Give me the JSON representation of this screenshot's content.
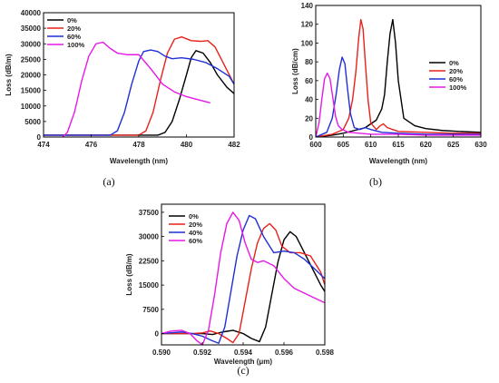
{
  "chart_data": [
    {
      "type": "line",
      "caption": "(a)",
      "xlabel": "Wavelength (nm)",
      "ylabel": "Loss (dB/m)",
      "xlim": [
        474,
        482
      ],
      "ylim": [
        0,
        40000
      ],
      "xticks": [
        474,
        476,
        478,
        480,
        482
      ],
      "yticks": [
        0,
        5000,
        10000,
        15000,
        20000,
        25000,
        30000,
        35000,
        40000
      ],
      "legend_position": "top-left",
      "series": [
        {
          "name": "0%",
          "color": "#000000",
          "x": [
            474,
            478.8,
            479.1,
            479.4,
            479.7,
            480.0,
            480.2,
            480.4,
            480.7,
            481.0,
            481.3,
            481.7,
            482
          ],
          "y": [
            600,
            600,
            1500,
            5000,
            12000,
            20000,
            25500,
            27800,
            27000,
            24000,
            20000,
            16000,
            14000
          ]
        },
        {
          "name": "20%",
          "color": "#e8211a",
          "x": [
            474,
            478.0,
            478.3,
            478.6,
            478.9,
            479.2,
            479.5,
            479.8,
            480.2,
            480.6,
            480.9,
            481.2,
            481.6,
            482
          ],
          "y": [
            600,
            600,
            2000,
            8000,
            18000,
            27000,
            31500,
            32200,
            31000,
            30800,
            31000,
            29000,
            23000,
            17000
          ]
        },
        {
          "name": "60%",
          "color": "#1f2fd6",
          "x": [
            474,
            476.8,
            477.1,
            477.4,
            477.7,
            478.0,
            478.2,
            478.5,
            478.8,
            479.1,
            479.4,
            479.8,
            480.3,
            480.8,
            481.3,
            481.8,
            482
          ],
          "y": [
            600,
            600,
            2000,
            8000,
            17000,
            24500,
            27500,
            28000,
            27500,
            26000,
            25200,
            25500,
            25000,
            24000,
            22000,
            19500,
            17000
          ]
        },
        {
          "name": "100%",
          "color": "#e619e6",
          "x": [
            474.8,
            475.0,
            475.3,
            475.6,
            475.9,
            476.2,
            476.5,
            476.8,
            477.1,
            477.5,
            478.0,
            478.5,
            479.0,
            479.5,
            480.0,
            480.5,
            481.0
          ],
          "y": [
            0,
            1500,
            8000,
            18000,
            26000,
            30000,
            30500,
            28500,
            27000,
            26500,
            26500,
            22000,
            17000,
            14500,
            13000,
            12000,
            11000
          ]
        }
      ]
    },
    {
      "type": "line",
      "caption": "(b)",
      "xlabel": "Wavelength (nm)",
      "ylabel": "Loss (dB/cm)",
      "xlim": [
        600,
        630
      ],
      "ylim": [
        0,
        140
      ],
      "xticks": [
        600,
        605,
        610,
        615,
        620,
        625,
        630
      ],
      "yticks": [
        0,
        20,
        40,
        60,
        80,
        100,
        120,
        140
      ],
      "legend_position": "top-right",
      "series": [
        {
          "name": "0%",
          "color": "#000000",
          "x": [
            600,
            603,
            605,
            607,
            609,
            611,
            612,
            612.5,
            613,
            613.5,
            614,
            614.5,
            615,
            616,
            618,
            620,
            623,
            626,
            630
          ],
          "y": [
            0,
            2,
            4,
            7,
            10,
            18,
            30,
            45,
            80,
            110,
            125,
            100,
            60,
            20,
            12,
            9,
            7,
            6,
            5
          ]
        },
        {
          "name": "20%",
          "color": "#e8211a",
          "x": [
            600,
            603,
            605,
            606,
            606.7,
            607.3,
            607.8,
            608.2,
            608.6,
            609.0,
            609.5,
            610,
            611,
            611.7,
            612.3,
            613,
            615,
            620,
            625,
            630
          ],
          "y": [
            0,
            3,
            8,
            20,
            40,
            70,
            105,
            125,
            115,
            80,
            40,
            15,
            8,
            12,
            14,
            10,
            6,
            5,
            4,
            4
          ]
        },
        {
          "name": "60%",
          "color": "#1f2fd6",
          "x": [
            600,
            602,
            603,
            603.7,
            604.3,
            604.8,
            605.3,
            605.8,
            606.3,
            607,
            608,
            609,
            610,
            612,
            615,
            620,
            625,
            630
          ],
          "y": [
            0,
            5,
            20,
            45,
            72,
            85,
            78,
            50,
            25,
            10,
            8,
            10,
            8,
            5,
            4,
            3,
            3,
            3
          ]
        },
        {
          "name": "100%",
          "color": "#e619e6",
          "x": [
            600,
            600.6,
            601.1,
            601.6,
            602.1,
            602.6,
            603.1,
            603.6,
            604.1,
            604.8,
            606,
            608,
            610,
            615,
            620,
            625,
            630
          ],
          "y": [
            0,
            15,
            40,
            62,
            68,
            62,
            42,
            22,
            12,
            8,
            5,
            4,
            3,
            3,
            2,
            2,
            2
          ]
        }
      ]
    },
    {
      "type": "line",
      "caption": "(c)",
      "xlabel": "Wavelength (μm)",
      "ylabel": "Loss (dB/m)",
      "xlim": [
        0.59,
        0.598
      ],
      "ylim": [
        -3500,
        40000
      ],
      "xticks": [
        0.59,
        0.592,
        0.594,
        0.596,
        0.598
      ],
      "xtick_labels": [
        "0.590",
        "0.592",
        "0.594",
        "0.596",
        "0.598"
      ],
      "yticks": [
        0,
        7500,
        15000,
        22500,
        30000,
        37500
      ],
      "legend_position": "top-left",
      "series": [
        {
          "name": "0%",
          "color": "#000000",
          "x": [
            0.59,
            0.592,
            0.5925,
            0.593,
            0.5935,
            0.594,
            0.5944,
            0.5948,
            0.5951,
            0.5954,
            0.5957,
            0.596,
            0.5963,
            0.5966,
            0.597,
            0.5974,
            0.5978,
            0.598
          ],
          "y": [
            0,
            0,
            -300,
            500,
            1000,
            0,
            -1500,
            -2500,
            2000,
            12000,
            22000,
            29000,
            31500,
            30000,
            25000,
            20000,
            15000,
            13000
          ]
        },
        {
          "name": "20%",
          "color": "#e8211a",
          "x": [
            0.59,
            0.5915,
            0.592,
            0.5924,
            0.5928,
            0.5932,
            0.5935,
            0.5938,
            0.5941,
            0.5944,
            0.5947,
            0.595,
            0.5953,
            0.5956,
            0.5959,
            0.5963,
            0.5968,
            0.5973,
            0.5978,
            0.598
          ],
          "y": [
            0,
            0,
            200,
            800,
            0,
            -1500,
            -2800,
            0,
            10000,
            20000,
            28000,
            32500,
            34000,
            32000,
            27000,
            25000,
            25000,
            24000,
            19000,
            15000
          ]
        },
        {
          "name": "40%",
          "color": "#1f2fd6",
          "x": [
            0.59,
            0.591,
            0.5915,
            0.592,
            0.5924,
            0.5928,
            0.5931,
            0.5934,
            0.5937,
            0.594,
            0.5943,
            0.5946,
            0.595,
            0.5955,
            0.596,
            0.5965,
            0.597,
            0.5975,
            0.598
          ],
          "y": [
            0,
            500,
            0,
            -800,
            -2000,
            -3000,
            2000,
            13000,
            24000,
            32000,
            36500,
            35500,
            30000,
            25000,
            25500,
            25000,
            23000,
            20000,
            17000
          ]
        },
        {
          "name": "60%",
          "color": "#e619e6",
          "x": [
            0.59,
            0.5905,
            0.591,
            0.5914,
            0.5917,
            0.592,
            0.5923,
            0.5926,
            0.5929,
            0.5932,
            0.5935,
            0.5938,
            0.5941,
            0.5944,
            0.5947,
            0.595,
            0.5955,
            0.596,
            0.5965,
            0.597,
            0.5975,
            0.598
          ],
          "y": [
            0,
            800,
            1000,
            0,
            -2000,
            -3500,
            1000,
            12000,
            25000,
            34000,
            37500,
            35000,
            28000,
            23000,
            22000,
            22500,
            21000,
            17000,
            14000,
            12500,
            11000,
            9500
          ]
        }
      ]
    }
  ]
}
